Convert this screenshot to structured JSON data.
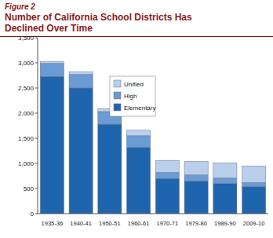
{
  "chart_data": {
    "type": "bar",
    "stacked": true,
    "figure_label": "Figure 2",
    "title": "Number of California School Districts Has Declined Over Time",
    "categories": [
      "1935-36",
      "1940-41",
      "1950-51",
      "1960-61",
      "1970-71",
      "1979-80",
      "1989-90",
      "2009-10"
    ],
    "series": [
      {
        "name": "Elementary",
        "color": "#1f65ad",
        "values": [
          2730,
          2500,
          1780,
          1320,
          700,
          650,
          600,
          540
        ]
      },
      {
        "name": "High",
        "color": "#6a9bd3",
        "values": [
          260,
          270,
          250,
          230,
          120,
          120,
          110,
          80
        ]
      },
      {
        "name": "Unified",
        "color": "#b9cfeb",
        "values": [
          40,
          50,
          60,
          110,
          240,
          270,
          300,
          330
        ]
      }
    ],
    "ylim": [
      0,
      3500
    ],
    "yticks": [
      0,
      500,
      {
        "value": 1000,
        "label": "1,000"
      },
      {
        "value": 1500,
        "label": "1,500"
      },
      {
        "value": 2000,
        "label": "2,000"
      },
      {
        "value": 2500,
        "label": "2,500"
      },
      {
        "value": 3000,
        "label": "3,000"
      },
      {
        "value": 3500,
        "label": "3,500"
      }
    ],
    "grid": false,
    "legend": "top"
  }
}
